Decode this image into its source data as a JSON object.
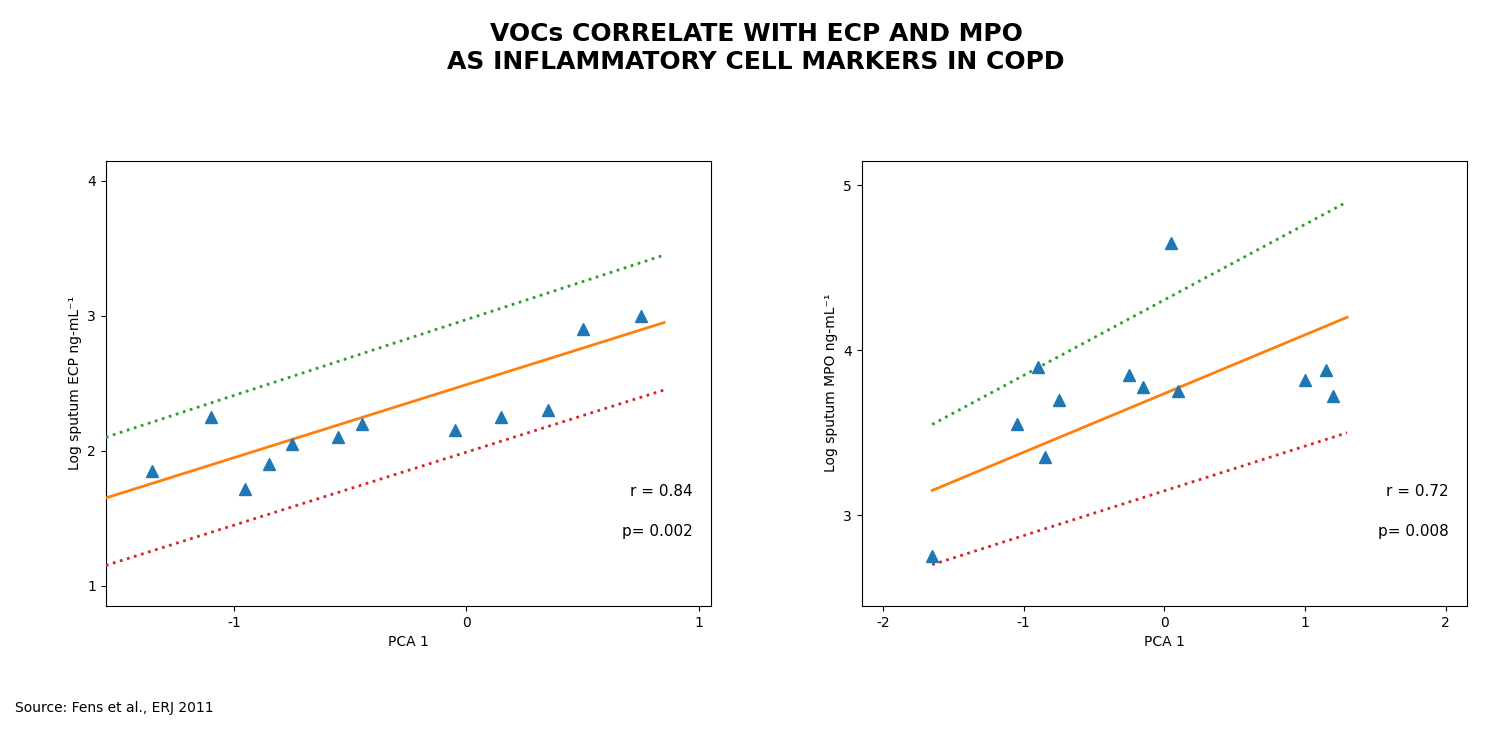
{
  "title": "VOCs CORRELATE WITH ECP AND MPO\nAS INFLAMMATORY CELL MARKERS IN COPD",
  "annotations": [
    "Source: Fens et al., ERJ 2011"
  ],
  "chart_data": [
    {
      "type": "scatter",
      "xlabel": "PCA 1",
      "ylabel": "Log sputum ECP ng-mL⁻¹",
      "xlim": [
        -1.55,
        1.05
      ],
      "ylim": [
        0.85,
        4.15
      ],
      "xticks": [
        -1,
        0,
        1
      ],
      "yticks": [
        1,
        2,
        3,
        4
      ],
      "grid": false,
      "annotations": [
        "r = 0.84",
        "p= 0.002"
      ],
      "series": [
        {
          "type": "scatter",
          "marker": "triangle",
          "x": [
            -1.35,
            -1.1,
            -0.95,
            -0.85,
            -0.75,
            -0.55,
            -0.45,
            -0.05,
            0.15,
            0.35,
            0.5,
            0.75
          ],
          "values": [
            1.85,
            2.25,
            1.72,
            1.9,
            2.05,
            2.1,
            2.2,
            2.15,
            2.25,
            2.3,
            2.9,
            3.0
          ]
        },
        {
          "type": "line",
          "line_style": "solid",
          "x": [
            -1.55,
            0.85
          ],
          "values": [
            1.65,
            2.95
          ]
        },
        {
          "type": "line",
          "line_style": "dotted",
          "x": [
            -1.55,
            0.85
          ],
          "values": [
            2.1,
            3.45
          ]
        },
        {
          "type": "line",
          "line_style": "dotted",
          "x": [
            -1.55,
            0.85
          ],
          "values": [
            1.15,
            2.45
          ]
        }
      ]
    },
    {
      "type": "scatter",
      "xlabel": "PCA 1",
      "ylabel": "Log sputum MPO ng-mL⁻¹",
      "xlim": [
        -2.15,
        2.15
      ],
      "ylim": [
        2.45,
        5.15
      ],
      "xticks": [
        -2,
        -1,
        0,
        1,
        2
      ],
      "yticks": [
        3,
        4,
        5
      ],
      "grid": false,
      "annotations": [
        "r = 0.72",
        "p= 0.008"
      ],
      "series": [
        {
          "type": "scatter",
          "marker": "triangle",
          "x": [
            -1.65,
            -1.05,
            -0.9,
            -0.85,
            -0.75,
            -0.25,
            -0.15,
            0.05,
            0.1,
            1.0,
            1.15,
            1.2
          ],
          "values": [
            2.75,
            3.55,
            3.9,
            3.35,
            3.7,
            3.85,
            3.78,
            4.65,
            3.75,
            3.82,
            3.88,
            3.72
          ]
        },
        {
          "type": "line",
          "line_style": "solid",
          "x": [
            -1.65,
            1.3
          ],
          "values": [
            3.15,
            4.2
          ]
        },
        {
          "type": "line",
          "line_style": "dotted",
          "x": [
            -1.65,
            1.3
          ],
          "values": [
            3.55,
            4.9
          ]
        },
        {
          "type": "line",
          "line_style": "dotted",
          "x": [
            -1.65,
            1.3
          ],
          "values": [
            2.7,
            3.5
          ]
        }
      ]
    }
  ]
}
